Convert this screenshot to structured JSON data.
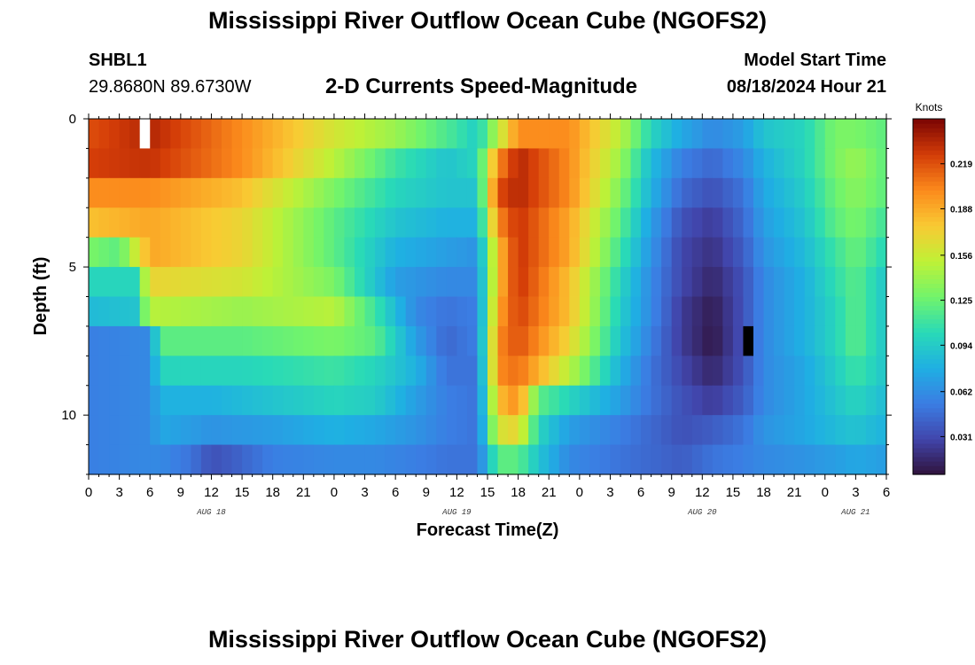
{
  "header": {
    "title": "Mississippi River Outflow Ocean Cube (NGOFS2)",
    "station_id": "SHBL1",
    "coords": "29.8680N  89.6730W",
    "subtitle": "2-D Currents Speed-Magnitude",
    "model_start_label": "Model Start Time",
    "model_start_value": "08/18/2024 Hour 21"
  },
  "footer": {
    "title": "Mississippi River Outflow Ocean Cube (NGOFS2)"
  },
  "chart_data": {
    "type": "heatmap",
    "xlabel": "Forecast Time(Z)",
    "ylabel": "Depth (ft)",
    "x_range_hours": [
      0,
      78
    ],
    "x_tick_step_hours": 3,
    "x_tick_labels": [
      "0",
      "3",
      "6",
      "9",
      "12",
      "15",
      "18",
      "21",
      "0",
      "3",
      "6",
      "9",
      "12",
      "15",
      "18",
      "21",
      "0",
      "3",
      "6",
      "9",
      "12",
      "15",
      "18",
      "21",
      "0",
      "3",
      "6"
    ],
    "date_labels": [
      {
        "text": "AUG 18",
        "hour": 12
      },
      {
        "text": "AUG 19",
        "hour": 36
      },
      {
        "text": "AUG 20",
        "hour": 60
      },
      {
        "text": "AUG 21",
        "hour": 75
      }
    ],
    "y_range_ft": [
      0,
      12
    ],
    "y_tick_labels": [
      "0",
      "5",
      "10"
    ],
    "y_tick_values": [
      0,
      5,
      10
    ],
    "colorbar": {
      "unit": "Knots",
      "range": [
        0.005,
        0.25
      ],
      "tick_labels": [
        "0.031",
        "0.062",
        "0.094",
        "0.125",
        "0.156",
        "0.188",
        "0.219"
      ],
      "tick_values": [
        0.031,
        0.062,
        0.094,
        0.125,
        0.156,
        0.188,
        0.219
      ]
    },
    "depth_layers_ft": [
      0.5,
      1.5,
      2.5,
      3.5,
      4.5,
      5.5,
      6.5,
      7.5,
      8.5,
      9.5,
      10.5,
      11.5
    ],
    "series": [
      {
        "layer": 0,
        "profile": [
          [
            0,
            0.22
          ],
          [
            6,
            0.235
          ],
          [
            15,
            0.2
          ],
          [
            24,
            0.16
          ],
          [
            30,
            0.14
          ],
          [
            36,
            0.11
          ],
          [
            38,
            0.095
          ],
          [
            40,
            0.15
          ],
          [
            42,
            0.2
          ],
          [
            47,
            0.2
          ],
          [
            52,
            0.15
          ],
          [
            55,
            0.1
          ],
          [
            58,
            0.075
          ],
          [
            61,
            0.06
          ],
          [
            64,
            0.07
          ],
          [
            66,
            0.09
          ],
          [
            70,
            0.1
          ],
          [
            73,
            0.13
          ],
          [
            75,
            0.13
          ],
          [
            78,
            0.12
          ]
        ]
      },
      {
        "layer": 1,
        "profile": [
          [
            0,
            0.225
          ],
          [
            6,
            0.23
          ],
          [
            15,
            0.2
          ],
          [
            24,
            0.15
          ],
          [
            30,
            0.11
          ],
          [
            35,
            0.09
          ],
          [
            38,
            0.1
          ],
          [
            40,
            0.2
          ],
          [
            42,
            0.235
          ],
          [
            47,
            0.2
          ],
          [
            52,
            0.14
          ],
          [
            55,
            0.085
          ],
          [
            58,
            0.055
          ],
          [
            61,
            0.045
          ],
          [
            64,
            0.06
          ],
          [
            66,
            0.08
          ],
          [
            70,
            0.1
          ],
          [
            73,
            0.13
          ],
          [
            75,
            0.14
          ],
          [
            78,
            0.12
          ]
        ]
      },
      {
        "layer": 2,
        "profile": [
          [
            0,
            0.2
          ],
          [
            6,
            0.2
          ],
          [
            15,
            0.18
          ],
          [
            24,
            0.13
          ],
          [
            30,
            0.1
          ],
          [
            35,
            0.09
          ],
          [
            38,
            0.09
          ],
          [
            40,
            0.22
          ],
          [
            42,
            0.235
          ],
          [
            47,
            0.2
          ],
          [
            52,
            0.13
          ],
          [
            55,
            0.08
          ],
          [
            58,
            0.045
          ],
          [
            61,
            0.035
          ],
          [
            64,
            0.05
          ],
          [
            66,
            0.075
          ],
          [
            70,
            0.095
          ],
          [
            73,
            0.125
          ],
          [
            75,
            0.135
          ],
          [
            78,
            0.12
          ]
        ]
      },
      {
        "layer": 3,
        "profile": [
          [
            0,
            0.18
          ],
          [
            6,
            0.19
          ],
          [
            15,
            0.17
          ],
          [
            24,
            0.12
          ],
          [
            30,
            0.09
          ],
          [
            35,
            0.08
          ],
          [
            38,
            0.08
          ],
          [
            40,
            0.2
          ],
          [
            42,
            0.23
          ],
          [
            47,
            0.19
          ],
          [
            52,
            0.12
          ],
          [
            55,
            0.07
          ],
          [
            58,
            0.035
          ],
          [
            61,
            0.025
          ],
          [
            64,
            0.045
          ],
          [
            66,
            0.07
          ],
          [
            70,
            0.09
          ],
          [
            73,
            0.12
          ],
          [
            75,
            0.13
          ],
          [
            78,
            0.11
          ]
        ]
      },
      {
        "layer": 4,
        "profile": [
          [
            0,
            0.13
          ],
          [
            3,
            0.12
          ],
          [
            6,
            0.19
          ],
          [
            15,
            0.17
          ],
          [
            24,
            0.12
          ],
          [
            30,
            0.08
          ],
          [
            35,
            0.07
          ],
          [
            38,
            0.065
          ],
          [
            40,
            0.18
          ],
          [
            42,
            0.23
          ],
          [
            47,
            0.19
          ],
          [
            52,
            0.11
          ],
          [
            55,
            0.065
          ],
          [
            58,
            0.03
          ],
          [
            61,
            0.02
          ],
          [
            64,
            0.04
          ],
          [
            66,
            0.065
          ],
          [
            70,
            0.085
          ],
          [
            73,
            0.11
          ],
          [
            75,
            0.125
          ],
          [
            78,
            0.1
          ]
        ]
      },
      {
        "layer": 5,
        "profile": [
          [
            0,
            0.1
          ],
          [
            4.5,
            0.1
          ],
          [
            6,
            0.17
          ],
          [
            15,
            0.16
          ],
          [
            24,
            0.13
          ],
          [
            30,
            0.07
          ],
          [
            35,
            0.06
          ],
          [
            38,
            0.06
          ],
          [
            40,
            0.18
          ],
          [
            42,
            0.23
          ],
          [
            47,
            0.18
          ],
          [
            52,
            0.1
          ],
          [
            55,
            0.06
          ],
          [
            58,
            0.03
          ],
          [
            61,
            0.015
          ],
          [
            64,
            0.035
          ],
          [
            66,
            0.06
          ],
          [
            70,
            0.08
          ],
          [
            73,
            0.105
          ],
          [
            75,
            0.12
          ],
          [
            78,
            0.09
          ]
        ]
      },
      {
        "layer": 6,
        "profile": [
          [
            0,
            0.085
          ],
          [
            4.5,
            0.09
          ],
          [
            6,
            0.15
          ],
          [
            15,
            0.14
          ],
          [
            24,
            0.15
          ],
          [
            28,
            0.11
          ],
          [
            32,
            0.06
          ],
          [
            35,
            0.05
          ],
          [
            38,
            0.055
          ],
          [
            40,
            0.19
          ],
          [
            42,
            0.225
          ],
          [
            47,
            0.18
          ],
          [
            52,
            0.095
          ],
          [
            55,
            0.06
          ],
          [
            58,
            0.025
          ],
          [
            61,
            0.01
          ],
          [
            64,
            0.035
          ],
          [
            66,
            0.06
          ],
          [
            70,
            0.08
          ],
          [
            73,
            0.1
          ],
          [
            75,
            0.12
          ],
          [
            78,
            0.09
          ]
        ]
      },
      {
        "layer": 7,
        "profile": [
          [
            0,
            0.055
          ],
          [
            6,
            0.06
          ],
          [
            7,
            0.12
          ],
          [
            15,
            0.12
          ],
          [
            24,
            0.13
          ],
          [
            28,
            0.12
          ],
          [
            32,
            0.07
          ],
          [
            35,
            0.045
          ],
          [
            38,
            0.055
          ],
          [
            40,
            0.2
          ],
          [
            42,
            0.22
          ],
          [
            47,
            0.17
          ],
          [
            52,
            0.09
          ],
          [
            55,
            0.055
          ],
          [
            58,
            0.025
          ],
          [
            61,
            0.008
          ],
          [
            64,
            0.035
          ],
          [
            66,
            0.06
          ],
          [
            70,
            0.08
          ],
          [
            73,
            0.1
          ],
          [
            75,
            0.12
          ],
          [
            78,
            0.09
          ]
        ]
      },
      {
        "layer": 8,
        "profile": [
          [
            0,
            0.055
          ],
          [
            6,
            0.06
          ],
          [
            7,
            0.1
          ],
          [
            15,
            0.1
          ],
          [
            24,
            0.11
          ],
          [
            28,
            0.1
          ],
          [
            32,
            0.08
          ],
          [
            35,
            0.05
          ],
          [
            38,
            0.05
          ],
          [
            40,
            0.2
          ],
          [
            42,
            0.21
          ],
          [
            47,
            0.15
          ],
          [
            52,
            0.08
          ],
          [
            55,
            0.05
          ],
          [
            58,
            0.03
          ],
          [
            61,
            0.015
          ],
          [
            64,
            0.035
          ],
          [
            66,
            0.06
          ],
          [
            70,
            0.075
          ],
          [
            73,
            0.095
          ],
          [
            75,
            0.11
          ],
          [
            78,
            0.09
          ]
        ]
      },
      {
        "layer": 9,
        "profile": [
          [
            0,
            0.055
          ],
          [
            6,
            0.06
          ],
          [
            7,
            0.08
          ],
          [
            12,
            0.08
          ],
          [
            18,
            0.09
          ],
          [
            24,
            0.1
          ],
          [
            28,
            0.095
          ],
          [
            32,
            0.07
          ],
          [
            35,
            0.055
          ],
          [
            38,
            0.05
          ],
          [
            40,
            0.18
          ],
          [
            42,
            0.2
          ],
          [
            44,
            0.12
          ],
          [
            47,
            0.1
          ],
          [
            52,
            0.07
          ],
          [
            55,
            0.05
          ],
          [
            58,
            0.035
          ],
          [
            61,
            0.025
          ],
          [
            64,
            0.04
          ],
          [
            66,
            0.06
          ],
          [
            70,
            0.075
          ],
          [
            73,
            0.09
          ],
          [
            75,
            0.1
          ],
          [
            78,
            0.085
          ]
        ]
      },
      {
        "layer": 10,
        "profile": [
          [
            0,
            0.055
          ],
          [
            6,
            0.06
          ],
          [
            7,
            0.075
          ],
          [
            12,
            0.065
          ],
          [
            18,
            0.07
          ],
          [
            24,
            0.08
          ],
          [
            28,
            0.075
          ],
          [
            32,
            0.065
          ],
          [
            35,
            0.055
          ],
          [
            38,
            0.05
          ],
          [
            40,
            0.16
          ],
          [
            42,
            0.17
          ],
          [
            44,
            0.1
          ],
          [
            47,
            0.07
          ],
          [
            52,
            0.055
          ],
          [
            55,
            0.045
          ],
          [
            58,
            0.035
          ],
          [
            61,
            0.04
          ],
          [
            64,
            0.05
          ],
          [
            66,
            0.065
          ],
          [
            70,
            0.075
          ],
          [
            73,
            0.085
          ],
          [
            75,
            0.09
          ],
          [
            78,
            0.08
          ]
        ]
      },
      {
        "layer": 11,
        "profile": [
          [
            0,
            0.055
          ],
          [
            6,
            0.06
          ],
          [
            7,
            0.06
          ],
          [
            10,
            0.05
          ],
          [
            12,
            0.035
          ],
          [
            14,
            0.04
          ],
          [
            18,
            0.055
          ],
          [
            24,
            0.06
          ],
          [
            28,
            0.06
          ],
          [
            32,
            0.055
          ],
          [
            35,
            0.05
          ],
          [
            38,
            0.05
          ],
          [
            39.5,
            0.1
          ],
          [
            40,
            0.12
          ],
          [
            42,
            0.12
          ],
          [
            44,
            0.09
          ],
          [
            47,
            0.06
          ],
          [
            52,
            0.05
          ],
          [
            55,
            0.045
          ],
          [
            58,
            0.04
          ],
          [
            61,
            0.05
          ],
          [
            64,
            0.055
          ],
          [
            66,
            0.06
          ],
          [
            70,
            0.065
          ],
          [
            73,
            0.07
          ],
          [
            75,
            0.075
          ],
          [
            78,
            0.07
          ]
        ]
      }
    ],
    "missing_cells": [
      {
        "hour": 5,
        "layer": 0
      },
      {
        "hour": 64,
        "layer": 7
      }
    ]
  }
}
